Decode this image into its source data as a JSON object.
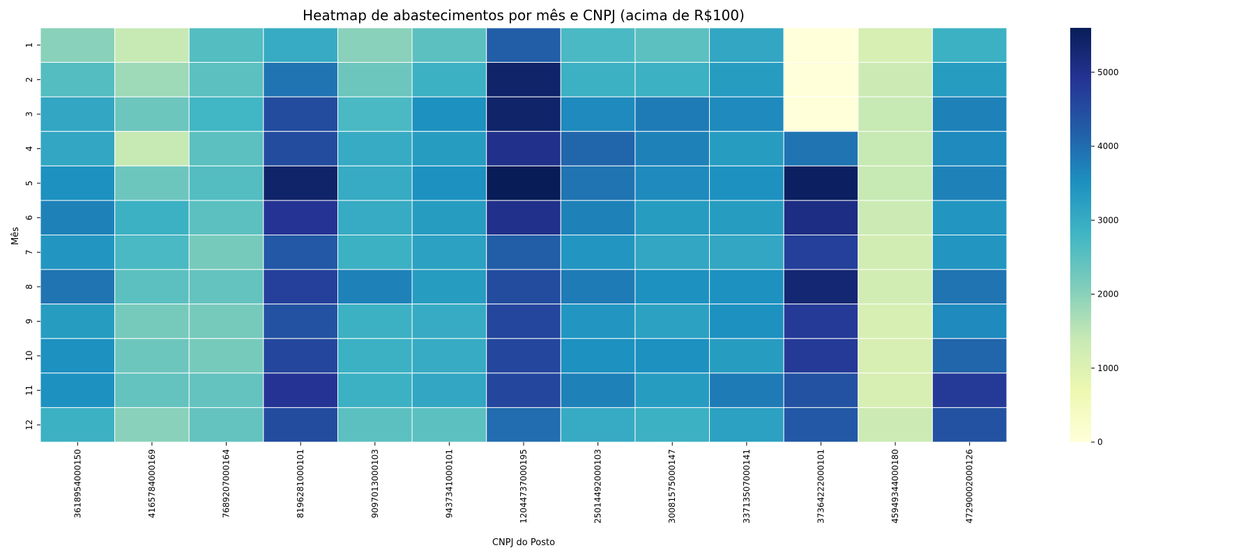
{
  "chart_data": {
    "type": "heatmap",
    "title": "Heatmap de abastecimentos por mês e CNPJ (acima de R$100)",
    "xlabel": "CNPJ do Posto",
    "ylabel": "Mês",
    "colormap": "YlGnBu",
    "colorbar": {
      "min": 0,
      "max": 5600,
      "ticks": [
        0,
        1000,
        2000,
        3000,
        4000,
        5000
      ]
    },
    "x_categories": [
      "3618954000150",
      "4165784000169",
      "7689207000164",
      "8196281000101",
      "9097013000103",
      "9437341000101",
      "12044737000195",
      "25014492000103",
      "30081575000147",
      "33713507000141",
      "37364222000101",
      "45949344000180",
      "47290002000126"
    ],
    "y_categories": [
      "1",
      "2",
      "3",
      "4",
      "5",
      "6",
      "7",
      "8",
      "9",
      "10",
      "11",
      "12"
    ],
    "values": [
      [
        2000,
        1400,
        2600,
        3000,
        2000,
        2500,
        4200,
        2700,
        2500,
        3100,
        0,
        1100,
        2900
      ],
      [
        2600,
        1800,
        2500,
        3900,
        2300,
        2900,
        5400,
        2900,
        2900,
        3300,
        0,
        1300,
        3300
      ],
      [
        3100,
        2300,
        2800,
        4500,
        2700,
        3500,
        5400,
        3600,
        3800,
        3600,
        0,
        1400,
        3700
      ],
      [
        3100,
        1400,
        2500,
        4500,
        3000,
        3300,
        5000,
        4100,
        3700,
        3300,
        3900,
        1400,
        3600
      ],
      [
        3500,
        2300,
        2600,
        5400,
        3000,
        3500,
        5600,
        3900,
        3600,
        3500,
        5500,
        1400,
        3700
      ],
      [
        3700,
        2900,
        2500,
        4900,
        3000,
        3300,
        5000,
        3700,
        3300,
        3300,
        5100,
        1300,
        3400
      ],
      [
        3400,
        2700,
        2200,
        4300,
        2900,
        3200,
        4200,
        3400,
        3100,
        3100,
        4700,
        1200,
        3400
      ],
      [
        3900,
        2500,
        2400,
        4700,
        3700,
        3300,
        4500,
        3800,
        3500,
        3500,
        5300,
        1200,
        3900
      ],
      [
        3300,
        2200,
        2200,
        4400,
        2900,
        3000,
        4600,
        3400,
        3200,
        3500,
        4800,
        1100,
        3600
      ],
      [
        3500,
        2300,
        2200,
        4600,
        2900,
        3000,
        4600,
        3500,
        3500,
        3300,
        4800,
        1100,
        4100
      ],
      [
        3500,
        2400,
        2400,
        4900,
        2900,
        3100,
        4600,
        3700,
        3300,
        3800,
        4400,
        1100,
        4800
      ],
      [
        2900,
        2000,
        2400,
        4500,
        2500,
        2500,
        4000,
        3000,
        2900,
        3200,
        4300,
        1300,
        4400
      ]
    ]
  }
}
